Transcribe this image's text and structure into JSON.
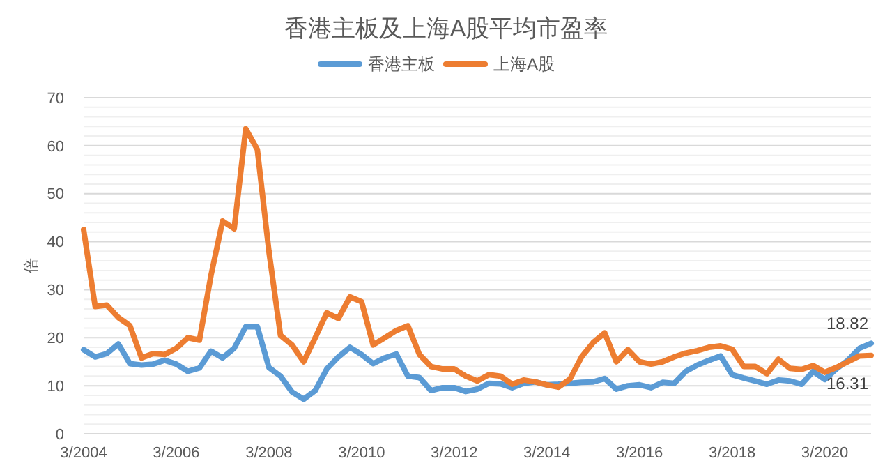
{
  "chart_data": {
    "type": "line",
    "title": "香港主板及上海A股平均市盈率",
    "ylabel": "倍",
    "categories": [
      "3/2004",
      null,
      null,
      null,
      null,
      null,
      null,
      null,
      "3/2006",
      null,
      null,
      null,
      null,
      null,
      null,
      null,
      "3/2008",
      null,
      null,
      null,
      null,
      null,
      null,
      null,
      "3/2010",
      null,
      null,
      null,
      null,
      null,
      null,
      null,
      "3/2012",
      null,
      null,
      null,
      null,
      null,
      null,
      null,
      "3/2014",
      null,
      null,
      null,
      null,
      null,
      null,
      null,
      "3/2016",
      null,
      null,
      null,
      null,
      null,
      null,
      null,
      "3/2018",
      null,
      null,
      null,
      null,
      null,
      null,
      null,
      "3/2020",
      null,
      null,
      null,
      null
    ],
    "series": [
      {
        "name": "香港主板",
        "color": "#5b9bd5",
        "values": [
          17.5,
          16,
          16.7,
          18.7,
          14.6,
          14.3,
          14.5,
          15.3,
          14.5,
          13,
          13.7,
          17.2,
          15.8,
          17.8,
          22.3,
          22.3,
          13.8,
          12,
          8.7,
          7.2,
          9,
          13.5,
          16,
          18,
          16.5,
          14.6,
          15.8,
          16.6,
          12,
          11.7,
          9,
          9.6,
          9.6,
          8.8,
          9.3,
          10.5,
          10.4,
          9.6,
          10.5,
          10.8,
          10.2,
          10.3,
          10.5,
          10.7,
          10.8,
          11.5,
          9.3,
          10,
          10.2,
          9.6,
          10.7,
          10.5,
          13,
          14.3,
          15.3,
          16.2,
          12.3,
          11.6,
          11,
          10.3,
          11.2,
          11,
          10.3,
          13,
          11.3,
          13.5,
          15.3,
          17.8,
          18.82
        ],
        "value_labels": [
          null,
          null,
          null,
          null,
          null,
          null,
          null,
          null,
          null,
          null,
          null,
          null,
          null,
          null,
          null,
          null,
          null,
          null,
          null,
          null,
          null,
          null,
          null,
          null,
          null,
          null,
          null,
          null,
          null,
          null,
          null,
          null,
          null,
          null,
          null,
          null,
          null,
          null,
          null,
          null,
          null,
          null,
          null,
          null,
          null,
          null,
          null,
          null,
          null,
          null,
          null,
          null,
          null,
          null,
          null,
          null,
          null,
          null,
          null,
          null,
          null,
          null,
          null,
          null,
          null,
          null,
          null,
          null,
          "18.82"
        ]
      },
      {
        "name": "上海A股",
        "color": "#ed7d31",
        "values": [
          42.5,
          26.5,
          26.8,
          24.2,
          22.5,
          15.8,
          16.7,
          16.5,
          17.8,
          20,
          19.5,
          33,
          44.3,
          42.7,
          63.5,
          59.2,
          38,
          20.5,
          18.5,
          15,
          20,
          25.2,
          24,
          28.5,
          27.5,
          18.5,
          20,
          21.5,
          22.5,
          16.5,
          14,
          13.5,
          13.5,
          12,
          11,
          12.3,
          12,
          10.3,
          11.2,
          10.8,
          10.2,
          9.7,
          11.4,
          16,
          19,
          21,
          15,
          17.5,
          15,
          14.5,
          15,
          16,
          16.8,
          17.3,
          18,
          18.3,
          17.6,
          14,
          14,
          12.5,
          15.5,
          13.6,
          13.4,
          14.2,
          12.8,
          13.8,
          15,
          16.2,
          16.31
        ],
        "value_labels": [
          null,
          null,
          null,
          null,
          null,
          null,
          null,
          null,
          null,
          null,
          null,
          null,
          null,
          null,
          null,
          null,
          null,
          null,
          null,
          null,
          null,
          null,
          null,
          null,
          null,
          null,
          null,
          null,
          null,
          null,
          null,
          null,
          null,
          null,
          null,
          null,
          null,
          null,
          null,
          null,
          null,
          null,
          null,
          null,
          null,
          null,
          null,
          null,
          null,
          null,
          null,
          null,
          null,
          null,
          null,
          null,
          null,
          null,
          null,
          null,
          null,
          null,
          null,
          null,
          null,
          null,
          null,
          null,
          "16.31"
        ]
      }
    ],
    "ylim": [
      0,
      70
    ],
    "yticks": [
      0,
      {
        "value": 2,
        "label": null
      },
      {
        "value": 4,
        "label": null
      },
      {
        "value": 6,
        "label": null
      },
      {
        "value": 8,
        "label": null
      },
      10,
      {
        "value": 12,
        "label": null
      },
      {
        "value": 14,
        "label": null
      },
      {
        "value": 16,
        "label": null
      },
      {
        "value": 18,
        "label": null
      },
      20,
      {
        "value": 22,
        "label": null
      },
      {
        "value": 24,
        "label": null
      },
      {
        "value": 26,
        "label": null
      },
      {
        "value": 28,
        "label": null
      },
      30,
      {
        "value": 32,
        "label": null
      },
      {
        "value": 34,
        "label": null
      },
      {
        "value": 36,
        "label": null
      },
      {
        "value": 38,
        "label": null
      },
      40,
      {
        "value": 42,
        "label": null
      },
      {
        "value": 44,
        "label": null
      },
      {
        "value": 46,
        "label": null
      },
      {
        "value": 48,
        "label": null
      },
      50,
      {
        "value": 52,
        "label": null
      },
      {
        "value": 54,
        "label": null
      },
      {
        "value": 56,
        "label": null
      },
      {
        "value": 58,
        "label": null
      },
      60,
      {
        "value": 62,
        "label": null
      },
      {
        "value": 64,
        "label": null
      },
      {
        "value": 66,
        "label": null
      },
      {
        "value": 68,
        "label": null
      },
      70
    ],
    "grid": "y",
    "legend": "top",
    "marker": "none",
    "line_style": "solid"
  }
}
